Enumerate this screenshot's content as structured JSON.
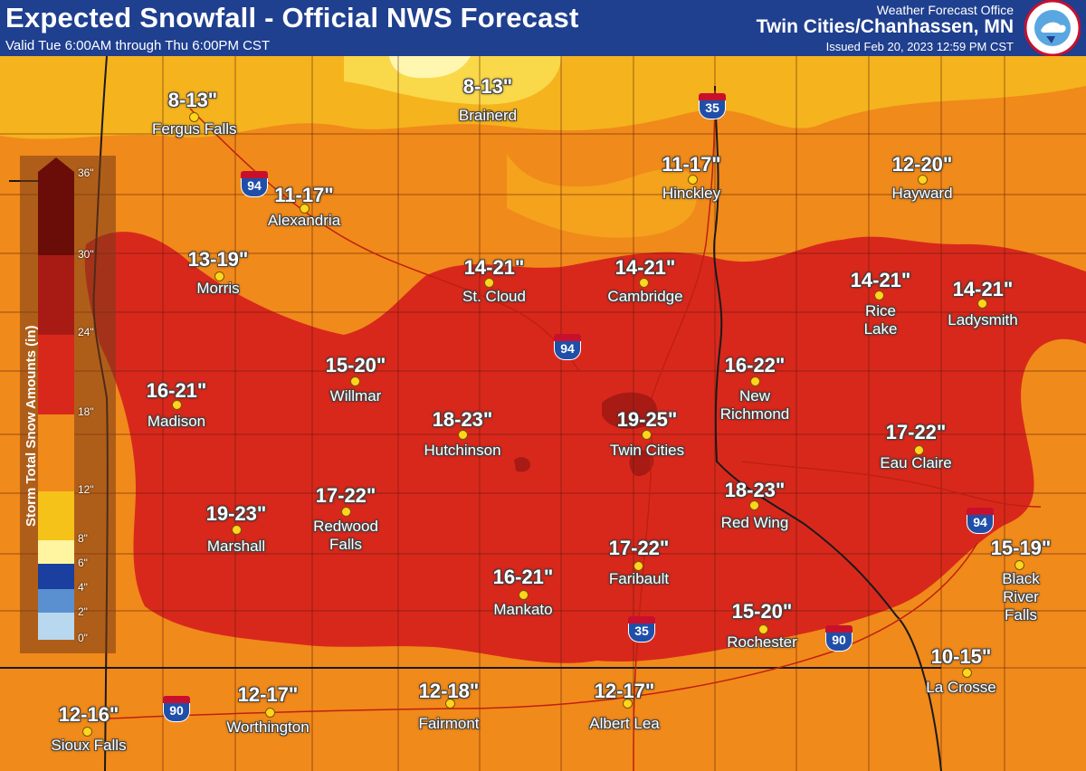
{
  "header": {
    "title": "Expected Snowfall - Official NWS Forecast",
    "valid": "Valid Tue 6:00AM through Thu 6:00PM CST",
    "office_label": "Weather Forecast Office",
    "office_name": "Twin Cities/Chanhassen, MN",
    "issued": "Issued Feb 20, 2023 12:59 PM CST",
    "logo_text": "NATIONAL WEATHER SERVICE"
  },
  "legend": {
    "title": "Storm Total Snow Amounts (in)",
    "ticks": [
      "36\"",
      "30\"",
      "24\"",
      "18\"",
      "12\"",
      "8\"",
      "6\"",
      "4\"",
      "2\"",
      "0\""
    ]
  },
  "colors": {
    "header": "#1f3f8f",
    "band_0_2": "#b8d8f0",
    "band_2_4": "#5a90d0",
    "band_4_6": "#1a3f9f",
    "band_6_8": "#fff4a0",
    "band_8_12": "#f5c21a",
    "band_12_18": "#f08a1a",
    "band_18_24": "#d8281c",
    "band_24_30": "#a81b14",
    "band_30_36": "#6a0c08"
  },
  "cities": [
    {
      "id": "fergus-falls",
      "name": "Fergus Falls",
      "amount": "8-13\""
    },
    {
      "id": "brainerd",
      "name": "Brainerd",
      "amount": "8-13\""
    },
    {
      "id": "alexandria",
      "name": "Alexandria",
      "amount": "11-17\""
    },
    {
      "id": "hinckley",
      "name": "Hinckley",
      "amount": "11-17\""
    },
    {
      "id": "hayward",
      "name": "Hayward",
      "amount": "12-20\""
    },
    {
      "id": "morris",
      "name": "Morris",
      "amount": "13-19\""
    },
    {
      "id": "st-cloud",
      "name": "St. Cloud",
      "amount": "14-21\""
    },
    {
      "id": "cambridge",
      "name": "Cambridge",
      "amount": "14-21\""
    },
    {
      "id": "rice-lake",
      "name": "Rice Lake",
      "amount": "14-21\""
    },
    {
      "id": "ladysmith",
      "name": "Ladysmith",
      "amount": "14-21\""
    },
    {
      "id": "willmar",
      "name": "Willmar",
      "amount": "15-20\""
    },
    {
      "id": "madison",
      "name": "Madison",
      "amount": "16-21\""
    },
    {
      "id": "new-richmond",
      "name": "New Richmond",
      "amount": "16-22\""
    },
    {
      "id": "hutchinson",
      "name": "Hutchinson",
      "amount": "18-23\""
    },
    {
      "id": "twin-cities",
      "name": "Twin Cities",
      "amount": "19-25\""
    },
    {
      "id": "eau-claire",
      "name": "Eau Claire",
      "amount": "17-22\""
    },
    {
      "id": "redwood-falls",
      "name": "Redwood Falls",
      "amount": "17-22\""
    },
    {
      "id": "marshall",
      "name": "Marshall",
      "amount": "19-23\""
    },
    {
      "id": "red-wing",
      "name": "Red Wing",
      "amount": "18-23\""
    },
    {
      "id": "faribault",
      "name": "Faribault",
      "amount": "17-22\""
    },
    {
      "id": "mankato",
      "name": "Mankato",
      "amount": "16-21\""
    },
    {
      "id": "black-river-falls",
      "name": "Black River Falls",
      "amount": "15-19\""
    },
    {
      "id": "rochester",
      "name": "Rochester",
      "amount": "15-20\""
    },
    {
      "id": "la-crosse",
      "name": "La Crosse",
      "amount": "10-15\""
    },
    {
      "id": "sioux-falls",
      "name": "Sioux Falls",
      "amount": "12-16\""
    },
    {
      "id": "worthington",
      "name": "Worthington",
      "amount": "12-17\""
    },
    {
      "id": "fairmont",
      "name": "Fairmont",
      "amount": "12-18\""
    },
    {
      "id": "albert-lea",
      "name": "Albert Lea",
      "amount": "12-17\""
    }
  ],
  "interstates": [
    {
      "id": "i94-alexandria",
      "label": "94"
    },
    {
      "id": "i35-north",
      "label": "35"
    },
    {
      "id": "i94-twin-cities",
      "label": "94"
    },
    {
      "id": "i94-eau-claire",
      "label": "94"
    },
    {
      "id": "i35-south",
      "label": "35"
    },
    {
      "id": "i90-rochester",
      "label": "90"
    },
    {
      "id": "i90-west",
      "label": "90"
    }
  ]
}
